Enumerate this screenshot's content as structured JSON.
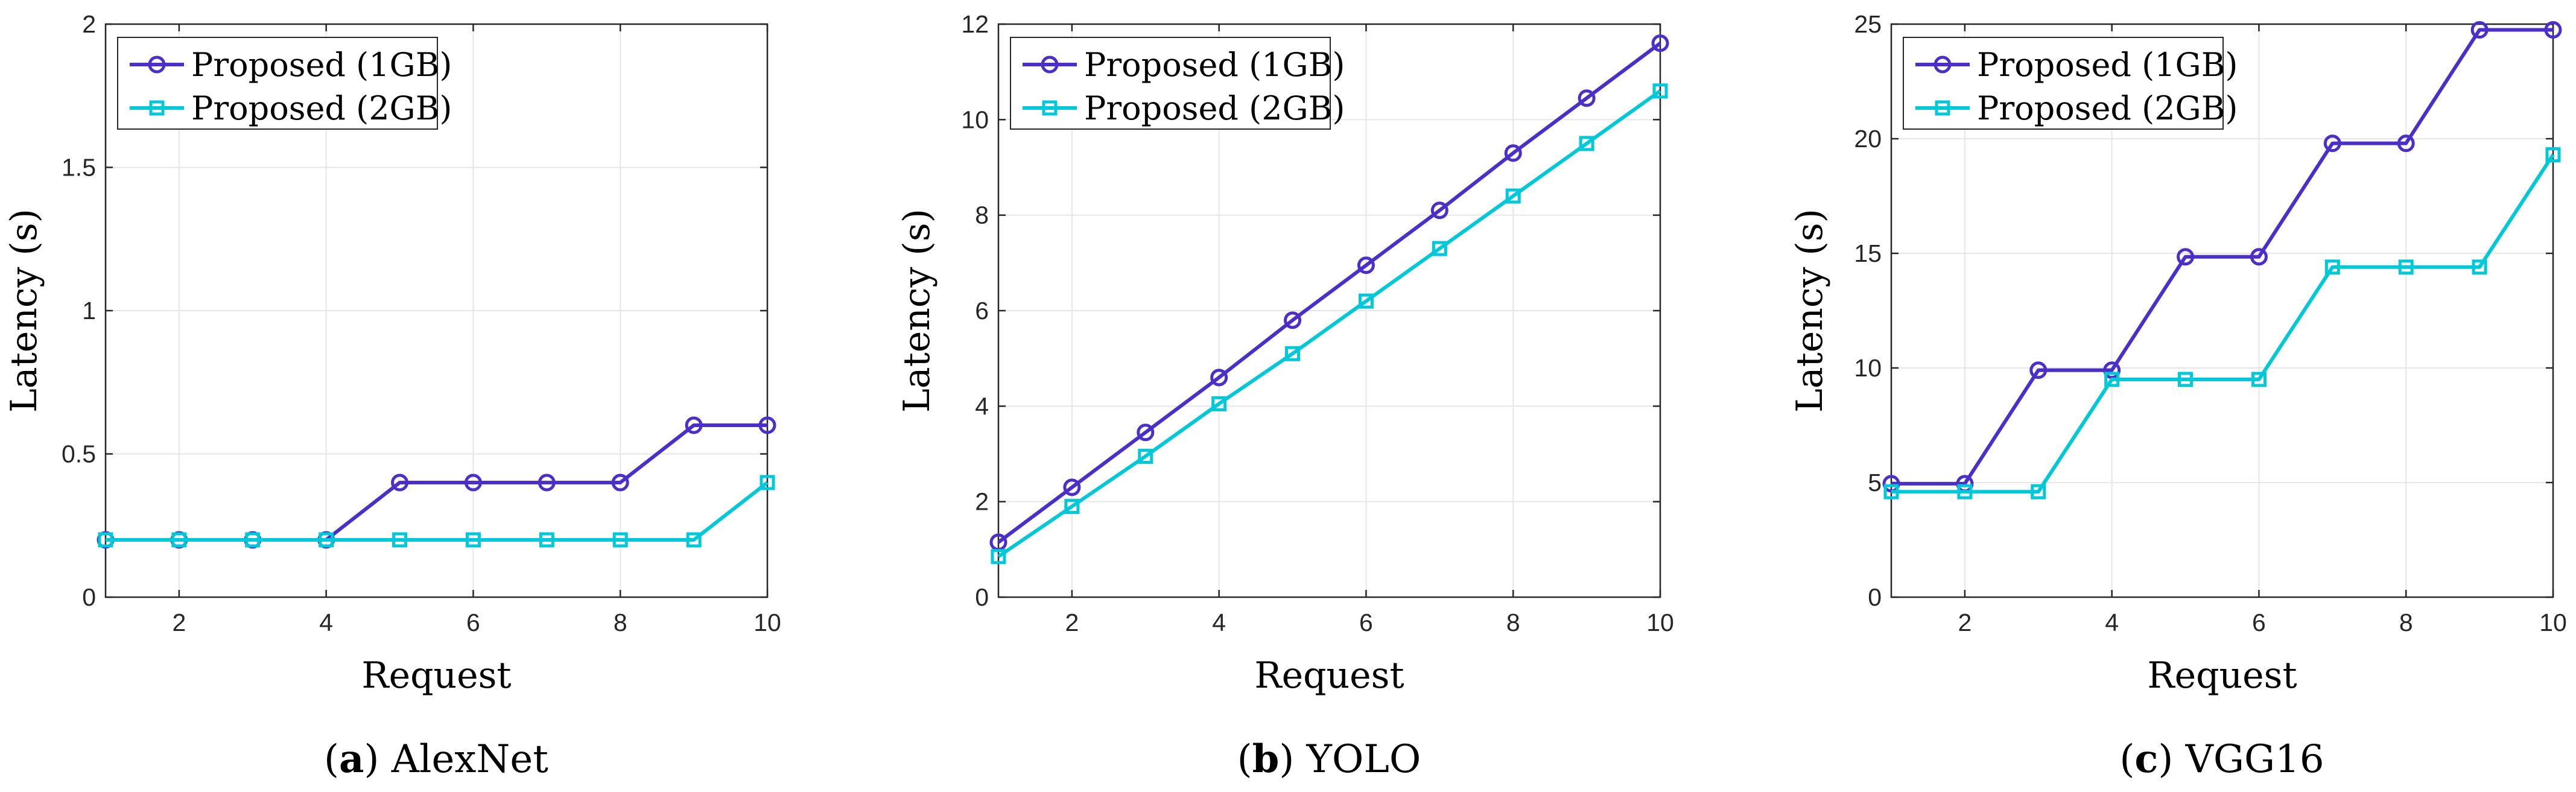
{
  "chart_data": [
    {
      "type": "line",
      "caption_letter": "a",
      "caption_text": "AlexNet",
      "xlabel": "Request",
      "ylabel": "Latency (s)",
      "xlim": [
        1,
        10
      ],
      "ylim": [
        0,
        2
      ],
      "xticks": [
        2,
        4,
        6,
        8,
        10
      ],
      "yticks": [
        0,
        0.5,
        1,
        1.5,
        2
      ],
      "ytick_labels": [
        "0",
        "0.5",
        "1",
        "1.5",
        "2"
      ],
      "grid": true,
      "legend_position": "top-left",
      "x": [
        1,
        2,
        3,
        4,
        5,
        6,
        7,
        8,
        9,
        10
      ],
      "series": [
        {
          "name": "Proposed (1GB)",
          "marker": "circle",
          "color": "#4B2FC8",
          "values": [
            0.2,
            0.2,
            0.2,
            0.2,
            0.4,
            0.4,
            0.4,
            0.4,
            0.6,
            0.6
          ]
        },
        {
          "name": "Proposed (2GB)",
          "marker": "square",
          "color": "#00C8D8",
          "values": [
            0.2,
            0.2,
            0.2,
            0.2,
            0.2,
            0.2,
            0.2,
            0.2,
            0.2,
            0.4
          ]
        }
      ]
    },
    {
      "type": "line",
      "caption_letter": "b",
      "caption_text": "YOLO",
      "xlabel": "Request",
      "ylabel": "Latency (s)",
      "xlim": [
        1,
        10
      ],
      "ylim": [
        0,
        12
      ],
      "xticks": [
        2,
        4,
        6,
        8,
        10
      ],
      "yticks": [
        0,
        2,
        4,
        6,
        8,
        10,
        12
      ],
      "ytick_labels": [
        "0",
        "2",
        "4",
        "6",
        "8",
        "10",
        "12"
      ],
      "grid": true,
      "legend_position": "top-left",
      "x": [
        1,
        2,
        3,
        4,
        5,
        6,
        7,
        8,
        9,
        10
      ],
      "series": [
        {
          "name": "Proposed (1GB)",
          "marker": "circle",
          "color": "#4B2FC8",
          "values": [
            1.15,
            2.3,
            3.45,
            4.6,
            5.8,
            6.95,
            8.1,
            9.3,
            10.45,
            11.6
          ]
        },
        {
          "name": "Proposed (2GB)",
          "marker": "square",
          "color": "#00C8D8",
          "values": [
            0.85,
            1.9,
            2.95,
            4.05,
            5.1,
            6.2,
            7.3,
            8.4,
            9.5,
            10.6
          ]
        }
      ]
    },
    {
      "type": "line",
      "caption_letter": "c",
      "caption_text": "VGG16",
      "xlabel": "Request",
      "ylabel": "Latency (s)",
      "xlim": [
        1,
        10
      ],
      "ylim": [
        0,
        25
      ],
      "xticks": [
        2,
        4,
        6,
        8,
        10
      ],
      "yticks": [
        0,
        5,
        10,
        15,
        20,
        25
      ],
      "ytick_labels": [
        "0",
        "5",
        "10",
        "15",
        "20",
        "25"
      ],
      "grid": true,
      "legend_position": "top-left",
      "x": [
        1,
        2,
        3,
        4,
        5,
        6,
        7,
        8,
        9,
        10
      ],
      "series": [
        {
          "name": "Proposed (1GB)",
          "marker": "circle",
          "color": "#4B2FC8",
          "values": [
            4.95,
            4.95,
            9.9,
            9.9,
            14.85,
            14.85,
            19.8,
            19.8,
            24.75,
            24.75
          ]
        },
        {
          "name": "Proposed (2GB)",
          "marker": "square",
          "color": "#00C8D8",
          "values": [
            4.6,
            4.6,
            4.6,
            9.5,
            9.5,
            9.5,
            14.4,
            14.4,
            14.4,
            19.3
          ]
        }
      ]
    }
  ]
}
